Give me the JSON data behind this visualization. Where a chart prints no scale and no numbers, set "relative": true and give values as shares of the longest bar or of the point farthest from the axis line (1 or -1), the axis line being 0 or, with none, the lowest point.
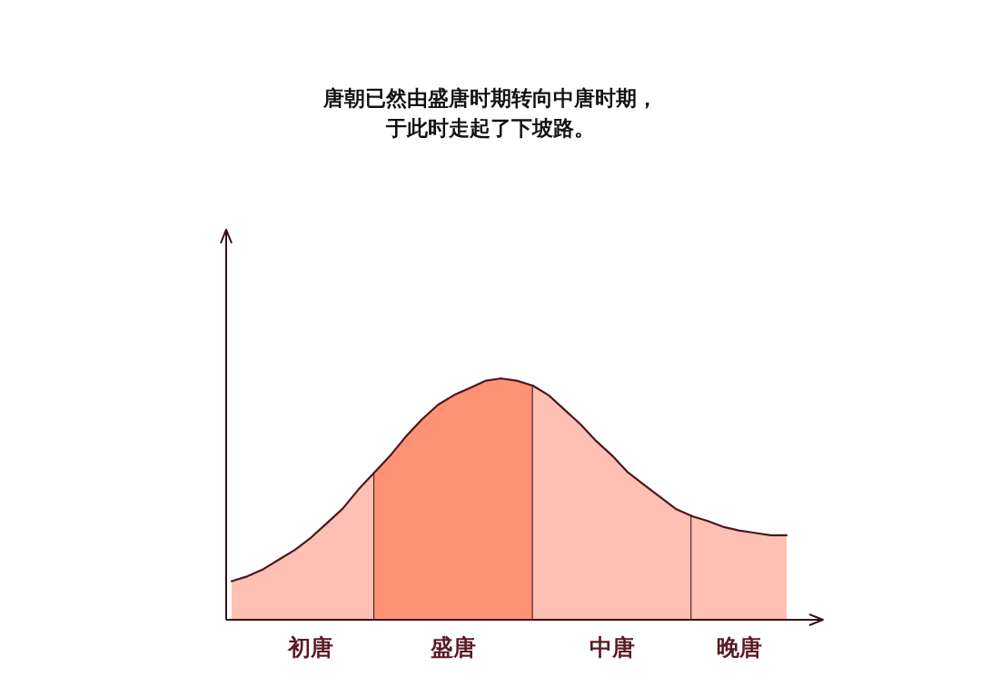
{
  "chart_data": {
    "type": "area",
    "relative": true,
    "title": "唐朝已然由盛唐时期转向中唐时期，",
    "subtitle": "于此时走起了下坡路。",
    "categories": [
      null,
      null,
      null,
      null,
      null,
      "初唐",
      null,
      null,
      null,
      null,
      null,
      null,
      null,
      null,
      "盛唐",
      null,
      null,
      null,
      null,
      null,
      null,
      null,
      null,
      null,
      "中唐",
      null,
      null,
      null,
      null,
      null,
      null,
      null,
      "晚唐",
      null,
      null,
      null
    ],
    "series": [
      {
        "color": "#fdc0b2",
        "values": [
          0.16,
          0.18,
          0.21,
          0.25,
          0.29,
          0.34,
          0.4,
          0.46,
          0.54,
          0.61,
          null,
          null,
          null,
          null,
          null,
          null,
          null,
          null,
          null,
          null,
          null,
          null,
          null,
          null,
          null,
          null,
          null,
          null,
          null,
          null,
          null,
          null,
          null,
          null,
          null,
          null
        ]
      },
      {
        "color": "#fe9275",
        "values": [
          null,
          null,
          null,
          null,
          null,
          null,
          null,
          null,
          null,
          0.61,
          0.68,
          0.76,
          0.83,
          0.89,
          0.93,
          0.96,
          0.99,
          1,
          0.99,
          0.97,
          null,
          null,
          null,
          null,
          null,
          null,
          null,
          null,
          null,
          null,
          null,
          null,
          null,
          null,
          null,
          null
        ]
      },
      {
        "color": "#fdc0b2",
        "values": [
          null,
          null,
          null,
          null,
          null,
          null,
          null,
          null,
          null,
          null,
          null,
          null,
          null,
          null,
          null,
          null,
          null,
          null,
          null,
          0.97,
          0.93,
          0.87,
          0.81,
          0.74,
          0.68,
          0.61,
          0.56,
          0.51,
          0.46,
          0.43,
          null,
          null,
          null,
          null,
          null,
          null
        ]
      },
      {
        "color": "#fdc0b2",
        "values": [
          null,
          null,
          null,
          null,
          null,
          null,
          null,
          null,
          null,
          null,
          null,
          null,
          null,
          null,
          null,
          null,
          null,
          null,
          null,
          null,
          null,
          null,
          null,
          null,
          null,
          null,
          null,
          null,
          null,
          0.43,
          0.41,
          0.385,
          0.37,
          0.36,
          0.35,
          0.35
        ]
      }
    ]
  }
}
